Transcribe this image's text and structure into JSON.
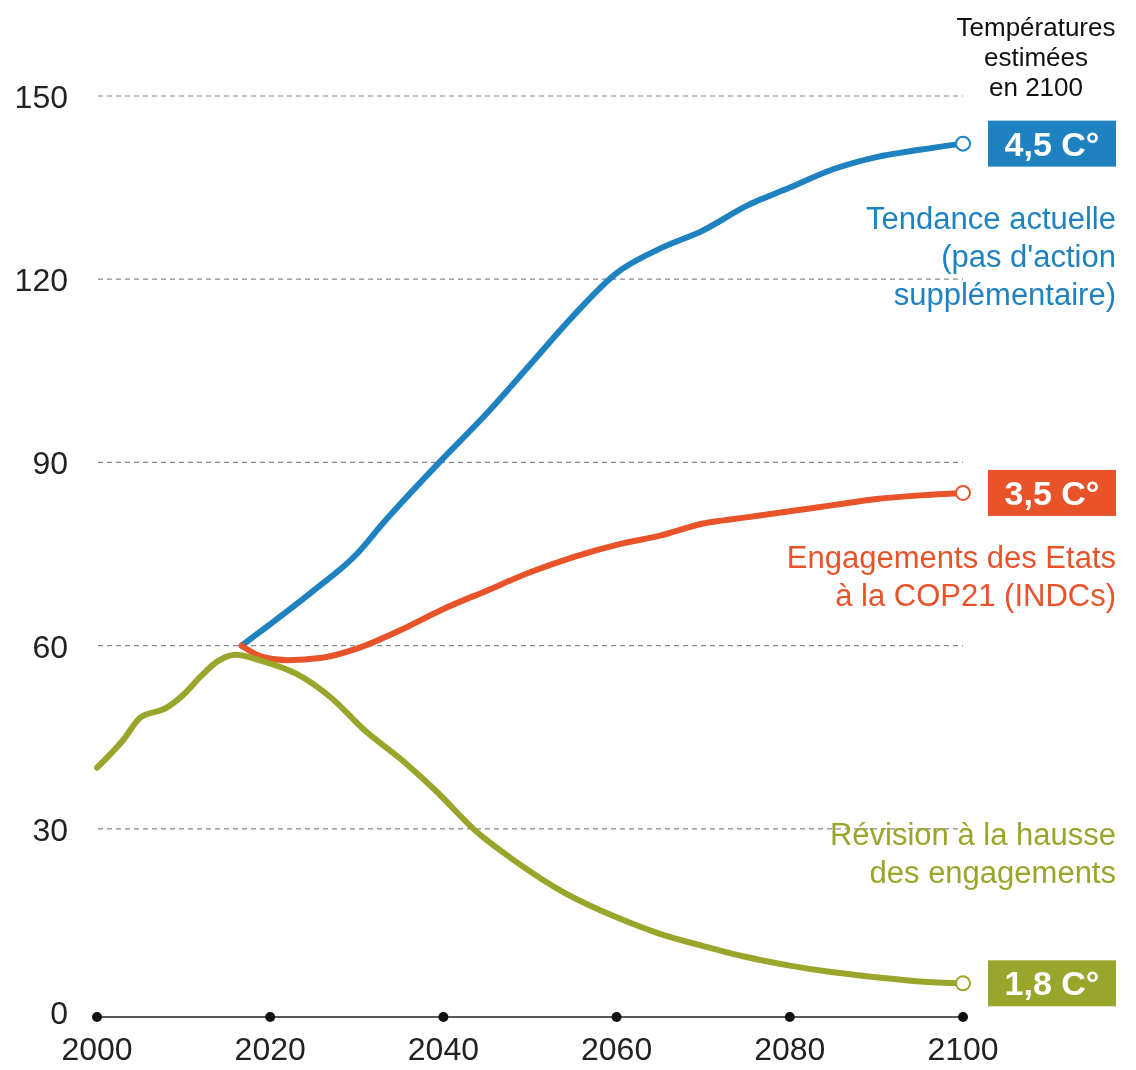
{
  "chart_data": {
    "type": "line",
    "xlim": [
      2000,
      2100
    ],
    "xticks": [
      2000,
      2020,
      2040,
      2060,
      2080,
      2100
    ],
    "ylim": [
      0,
      150
    ],
    "yticks": [
      0,
      30,
      60,
      90,
      120,
      150
    ],
    "grid": "y",
    "legend": "right",
    "line_style": "solid",
    "series": [
      {
        "name": "Tendance actuelle (pas d'action supplémentaire)",
        "color": "#1f82c0",
        "x": [
          2016.7,
          2020,
          2025,
          2030,
          2033,
          2040,
          2045,
          2050,
          2055,
          2060,
          2065,
          2070,
          2075,
          2080,
          2085,
          2090,
          2095,
          2100
        ],
        "values": [
          60,
          63.5,
          69,
          75,
          80,
          90.7,
          98,
          106,
          114,
          121,
          125,
          128,
          132,
          135,
          138,
          140,
          141.2,
          142.2
        ]
      },
      {
        "name": "Engagements des Etats à la COP21 (INDCs)",
        "color": "#e8532a",
        "x": [
          2016.7,
          2019,
          2022,
          2026,
          2030,
          2035,
          2040,
          2045,
          2050,
          2055,
          2060,
          2065,
          2070,
          2075,
          2080,
          2085,
          2090,
          2095,
          2100
        ],
        "values": [
          60,
          58.2,
          57.6,
          58,
          59.5,
          62.5,
          66,
          69,
          72,
          74.5,
          76.5,
          78,
          80,
          81,
          82,
          83,
          84,
          84.6,
          85
        ]
      },
      {
        "name": "Révision à la hausse des engagements",
        "color": "#9aa52b",
        "x": [
          2000,
          2003,
          2005,
          2008,
          2010,
          2012,
          2014,
          2016,
          2019,
          2023,
          2027,
          2031,
          2035,
          2039,
          2044,
          2048,
          2054,
          2060,
          2065,
          2070,
          2075,
          2080,
          2085,
          2090,
          2095,
          2100
        ],
        "values": [
          40,
          44.5,
          48.2,
          49.8,
          52,
          55,
          57.5,
          58.5,
          57.5,
          55.4,
          51.5,
          46,
          41.5,
          36.4,
          29.3,
          25,
          19.5,
          15.5,
          12.8,
          10.8,
          9,
          7.6,
          6.5,
          5.7,
          5,
          4.7
        ]
      }
    ],
    "annotations": [
      "Températures estimées en 2100",
      "4,5 C°",
      "3,5 C°",
      "1,8 C°"
    ]
  }
}
